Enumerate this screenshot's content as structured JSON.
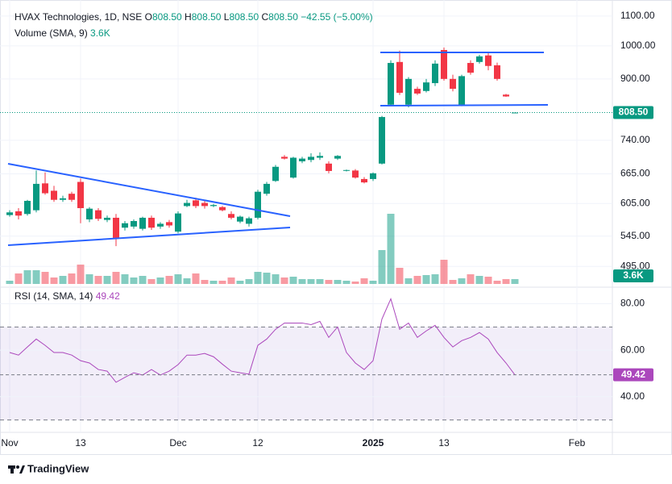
{
  "chart_data": [
    {
      "type": "candlestick",
      "header": {
        "name": "HVAX Technologies, 1D, NSE",
        "ohlc": [
          {
            "key": "O",
            "value": "808.50"
          },
          {
            "key": "H",
            "value": "808.50"
          },
          {
            "key": "L",
            "value": "808.50"
          },
          {
            "key": "C",
            "value": "808.50"
          }
        ],
        "change": "−42.55 (−5.00%)"
      },
      "categories": [
        "Nov",
        null,
        null,
        null,
        null,
        null,
        null,
        null,
        "13",
        null,
        null,
        null,
        null,
        null,
        null,
        null,
        null,
        null,
        null,
        "Dec",
        null,
        null,
        null,
        null,
        null,
        null,
        null,
        null,
        "12",
        null,
        null,
        null,
        null,
        null,
        null,
        null,
        null,
        null,
        null,
        null,
        null,
        "2025",
        null,
        null,
        null,
        null,
        null,
        null,
        null,
        "13",
        null,
        null,
        null,
        null,
        null,
        null,
        null,
        null,
        null,
        null,
        null,
        null,
        null,
        null,
        "Feb",
        null,
        null,
        null
      ],
      "open": [
        583,
        590,
        585,
        592,
        645,
        630,
        612,
        624,
        648,
        575,
        592,
        574,
        578,
        560,
        562,
        558,
        578,
        562,
        570,
        553,
        600,
        611,
        606,
        600,
        598,
        585,
        571,
        567,
        578,
        624,
        650,
        702,
        657,
        692,
        695,
        700,
        687,
        698,
        672,
        672,
        654,
        654,
        687,
        829,
        950,
        829,
        872,
        866,
        888,
        987,
        900,
        829,
        947,
        950,
        970,
        940,
        856,
        808.5,
        null,
        null,
        null,
        null,
        null,
        null,
        null,
        null,
        null,
        null
      ],
      "high": [
        592,
        596,
        612,
        672,
        668,
        640,
        620,
        628,
        655,
        598,
        596,
        582,
        585,
        572,
        575,
        580,
        582,
        570,
        574,
        590,
        612,
        616,
        610,
        604,
        600,
        590,
        582,
        580,
        632,
        648,
        684,
        706,
        702,
        702,
        710,
        712,
        692,
        706,
        674,
        675,
        658,
        668,
        800,
        955,
        985,
        905,
        878,
        900,
        955,
        995,
        912,
        912,
        955,
        972,
        978,
        948,
        858,
        808.5,
        null,
        null,
        null,
        null,
        null,
        null,
        null,
        null,
        null,
        null
      ],
      "low": [
        580,
        575,
        582,
        588,
        622,
        608,
        608,
        608,
        568,
        570,
        572,
        570,
        528,
        555,
        558,
        555,
        556,
        558,
        560,
        550,
        598,
        596,
        595,
        598,
        590,
        575,
        568,
        562,
        575,
        620,
        648,
        696,
        655,
        688,
        690,
        695,
        666,
        695,
        670,
        655,
        645,
        650,
        685,
        825,
        855,
        822,
        855,
        862,
        880,
        895,
        865,
        825,
        912,
        945,
        925,
        895,
        850,
        808.5,
        null,
        null,
        null,
        null,
        null,
        null,
        null,
        null,
        null,
        null
      ],
      "close": [
        588,
        582,
        610,
        644,
        625,
        612,
        615,
        612,
        596,
        595,
        576,
        578,
        542,
        568,
        572,
        578,
        560,
        567,
        564,
        586,
        606,
        600,
        600,
        602,
        592,
        578,
        580,
        577,
        628,
        644,
        680,
        698,
        700,
        698,
        702,
        704,
        671,
        704,
        673,
        657,
        647,
        666,
        797,
        947,
        861,
        900,
        859,
        890,
        945,
        900,
        872,
        908,
        918,
        967,
        938,
        900,
        851.05,
        808.5,
        null,
        null,
        null,
        null,
        null,
        null,
        null,
        null,
        null,
        null
      ],
      "ylim": [
        468,
        1134
      ],
      "log_scale": true,
      "yticks": [
        {
          "value": 1100,
          "label": "1100.00"
        },
        {
          "value": 1000,
          "label": "1000.00"
        },
        {
          "value": 900,
          "label": "900.00"
        },
        {
          "value": 740,
          "label": "740.00"
        },
        {
          "value": 665,
          "label": "665.00"
        },
        {
          "value": 605,
          "label": "605.00"
        },
        {
          "value": 545,
          "label": "545.00"
        },
        {
          "value": 495,
          "label": "495.00"
        }
      ],
      "grid": true,
      "up_color": "#089981",
      "down_color": "#f23645",
      "last_label": "808.50"
    },
    {
      "type": "volume",
      "title": "Volume (SMA, 9)",
      "sma_label": "3.6K",
      "values": [
        2400,
        7800,
        10200,
        10200,
        9000,
        4800,
        6000,
        7800,
        14400,
        7200,
        6000,
        6000,
        9000,
        7200,
        4800,
        6000,
        3600,
        4800,
        6000,
        7200,
        4200,
        7800,
        3000,
        2400,
        2400,
        4800,
        2400,
        3600,
        9000,
        8400,
        7200,
        4800,
        5400,
        3600,
        3600,
        3600,
        3000,
        3000,
        2400,
        1800,
        4200,
        2400,
        25200,
        52200,
        12000,
        4200,
        6000,
        6600,
        7200,
        18000,
        3000,
        4200,
        7200,
        6000,
        5400,
        2400,
        3600,
        3600,
        null,
        null,
        null,
        null,
        null,
        null,
        null,
        null,
        null,
        null
      ],
      "last_label": "3.6K",
      "up_color": "rgba(8,153,129,0.5)",
      "down_color": "rgba(242,54,69,0.5)"
    },
    {
      "type": "line",
      "title": "RSI (14, SMA, 14)",
      "values": [
        59,
        57.9,
        61.4,
        64.8,
        62.1,
        59,
        59,
        57.9,
        55.5,
        54.5,
        51.7,
        51,
        46.2,
        48.3,
        50.3,
        49.3,
        51.7,
        49.3,
        51,
        53.8,
        57.9,
        57.9,
        58.6,
        57.2,
        54,
        51,
        50.3,
        49.7,
        62.1,
        64.8,
        69,
        71.7,
        71.7,
        71.7,
        71,
        72.4,
        65.5,
        70,
        59,
        54.5,
        51.7,
        55.5,
        73.4,
        82.1,
        69,
        71.7,
        65.5,
        68.3,
        70.7,
        65.5,
        61.4,
        64.1,
        65.5,
        67.6,
        64.8,
        59,
        54.5,
        49.42,
        null,
        null,
        null,
        null,
        null,
        null,
        null,
        null,
        null,
        null
      ],
      "ylim": [
        25,
        84
      ],
      "yticks": [
        {
          "value": 80,
          "label": "80.00"
        },
        {
          "value": 60,
          "label": "60.00"
        },
        {
          "value": 40,
          "label": "40.00"
        }
      ],
      "bands": [
        70,
        30
      ],
      "color": "#ab47bc",
      "band_color": "rgba(126,87,194,0.1)"
    }
  ],
  "footer": "TradingView"
}
